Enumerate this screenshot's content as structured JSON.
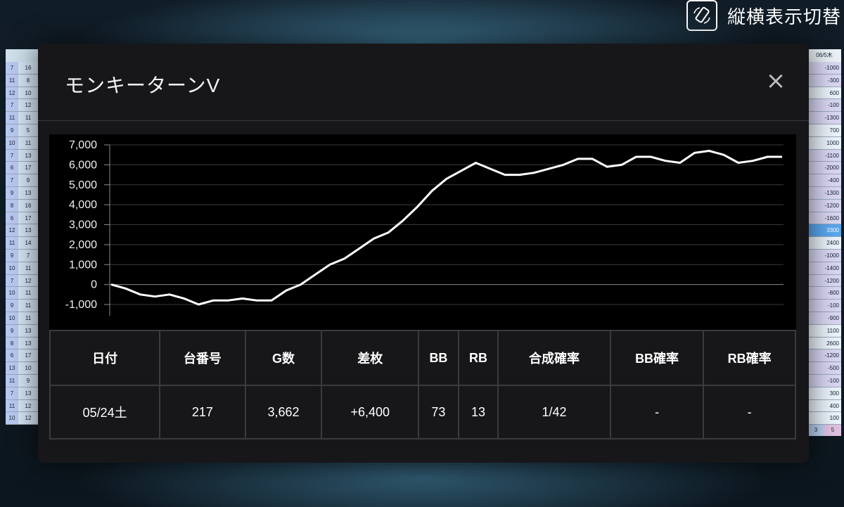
{
  "topbar": {
    "label": "縦横表示切替",
    "icon": "rotate-screen-icon"
  },
  "side_left": {
    "rows": [
      [
        "7",
        "16"
      ],
      [
        "11",
        "8"
      ],
      [
        "12",
        "10"
      ],
      [
        "7",
        "12"
      ],
      [
        "11",
        "11"
      ],
      [
        "9",
        "5"
      ],
      [
        "10",
        "11"
      ],
      [
        "7",
        "13"
      ],
      [
        "6",
        "17"
      ],
      [
        "7",
        "9"
      ],
      [
        "9",
        "13"
      ],
      [
        "8",
        "16"
      ],
      [
        "6",
        "17"
      ],
      [
        "12",
        "13"
      ],
      [
        "11",
        "14"
      ],
      [
        "9",
        "7"
      ],
      [
        "10",
        "11"
      ],
      [
        "7",
        "12"
      ],
      [
        "10",
        "11"
      ],
      [
        "9",
        "11"
      ],
      [
        "10",
        "11"
      ],
      [
        "9",
        "13"
      ],
      [
        "8",
        "13"
      ],
      [
        "6",
        "17"
      ],
      [
        "13",
        "10"
      ],
      [
        "11",
        "9"
      ],
      [
        "7",
        "13"
      ],
      [
        "11",
        "12"
      ],
      [
        "10",
        "12"
      ]
    ]
  },
  "side_right": {
    "header": "06/5木",
    "values": [
      "-1000",
      "-300",
      "600",
      "-100",
      "-1300",
      "700",
      "1000",
      "-1100",
      "-2000",
      "-400",
      "-1300",
      "-1200",
      "-1600",
      "3300",
      "2400",
      "-1000",
      "-1400",
      "-1200",
      "-800",
      "-100",
      "-900",
      "1100",
      "2600",
      "-1200",
      "-500",
      "-100",
      "300",
      "400",
      "100"
    ],
    "footer": [
      "3",
      "5"
    ]
  },
  "modal": {
    "title": "モンキーターンV",
    "close_label": "×"
  },
  "chart_data": {
    "type": "line",
    "title": "",
    "xlabel": "",
    "ylabel": "",
    "ylim": [
      -1000,
      7000
    ],
    "yticks": [
      7000,
      6000,
      5000,
      4000,
      3000,
      2000,
      1000,
      0,
      -1000
    ],
    "ytick_labels": [
      "7,000",
      "6,000",
      "5,000",
      "4,000",
      "3,000",
      "2,000",
      "1,000",
      "0",
      "-1,000"
    ],
    "grid": true,
    "line_color": "#ffffff",
    "background": "#000000",
    "series": [
      {
        "values": [
          0,
          -200,
          -500,
          -600,
          -500,
          -700,
          -1000,
          -800,
          -800,
          -700,
          -800,
          -800,
          -300,
          0,
          500,
          1000,
          1300,
          1800,
          2300,
          2600,
          3200,
          3900,
          4700,
          5300,
          5700,
          6100,
          5800,
          5500,
          5500,
          5600,
          5800,
          6000,
          6300,
          6300,
          5900,
          6000,
          6400,
          6400,
          6200,
          6100,
          6600,
          6700,
          6500,
          6100,
          6200,
          6400,
          6400
        ]
      }
    ]
  },
  "table": {
    "headers": [
      "日付",
      "台番号",
      "G数",
      "差枚",
      "BB",
      "RB",
      "合成確率",
      "BB確率",
      "RB確率"
    ],
    "rows": [
      [
        "05/24土",
        "217",
        "3,662",
        "+6,400",
        "73",
        "13",
        "1/42",
        "-",
        "-"
      ]
    ]
  }
}
